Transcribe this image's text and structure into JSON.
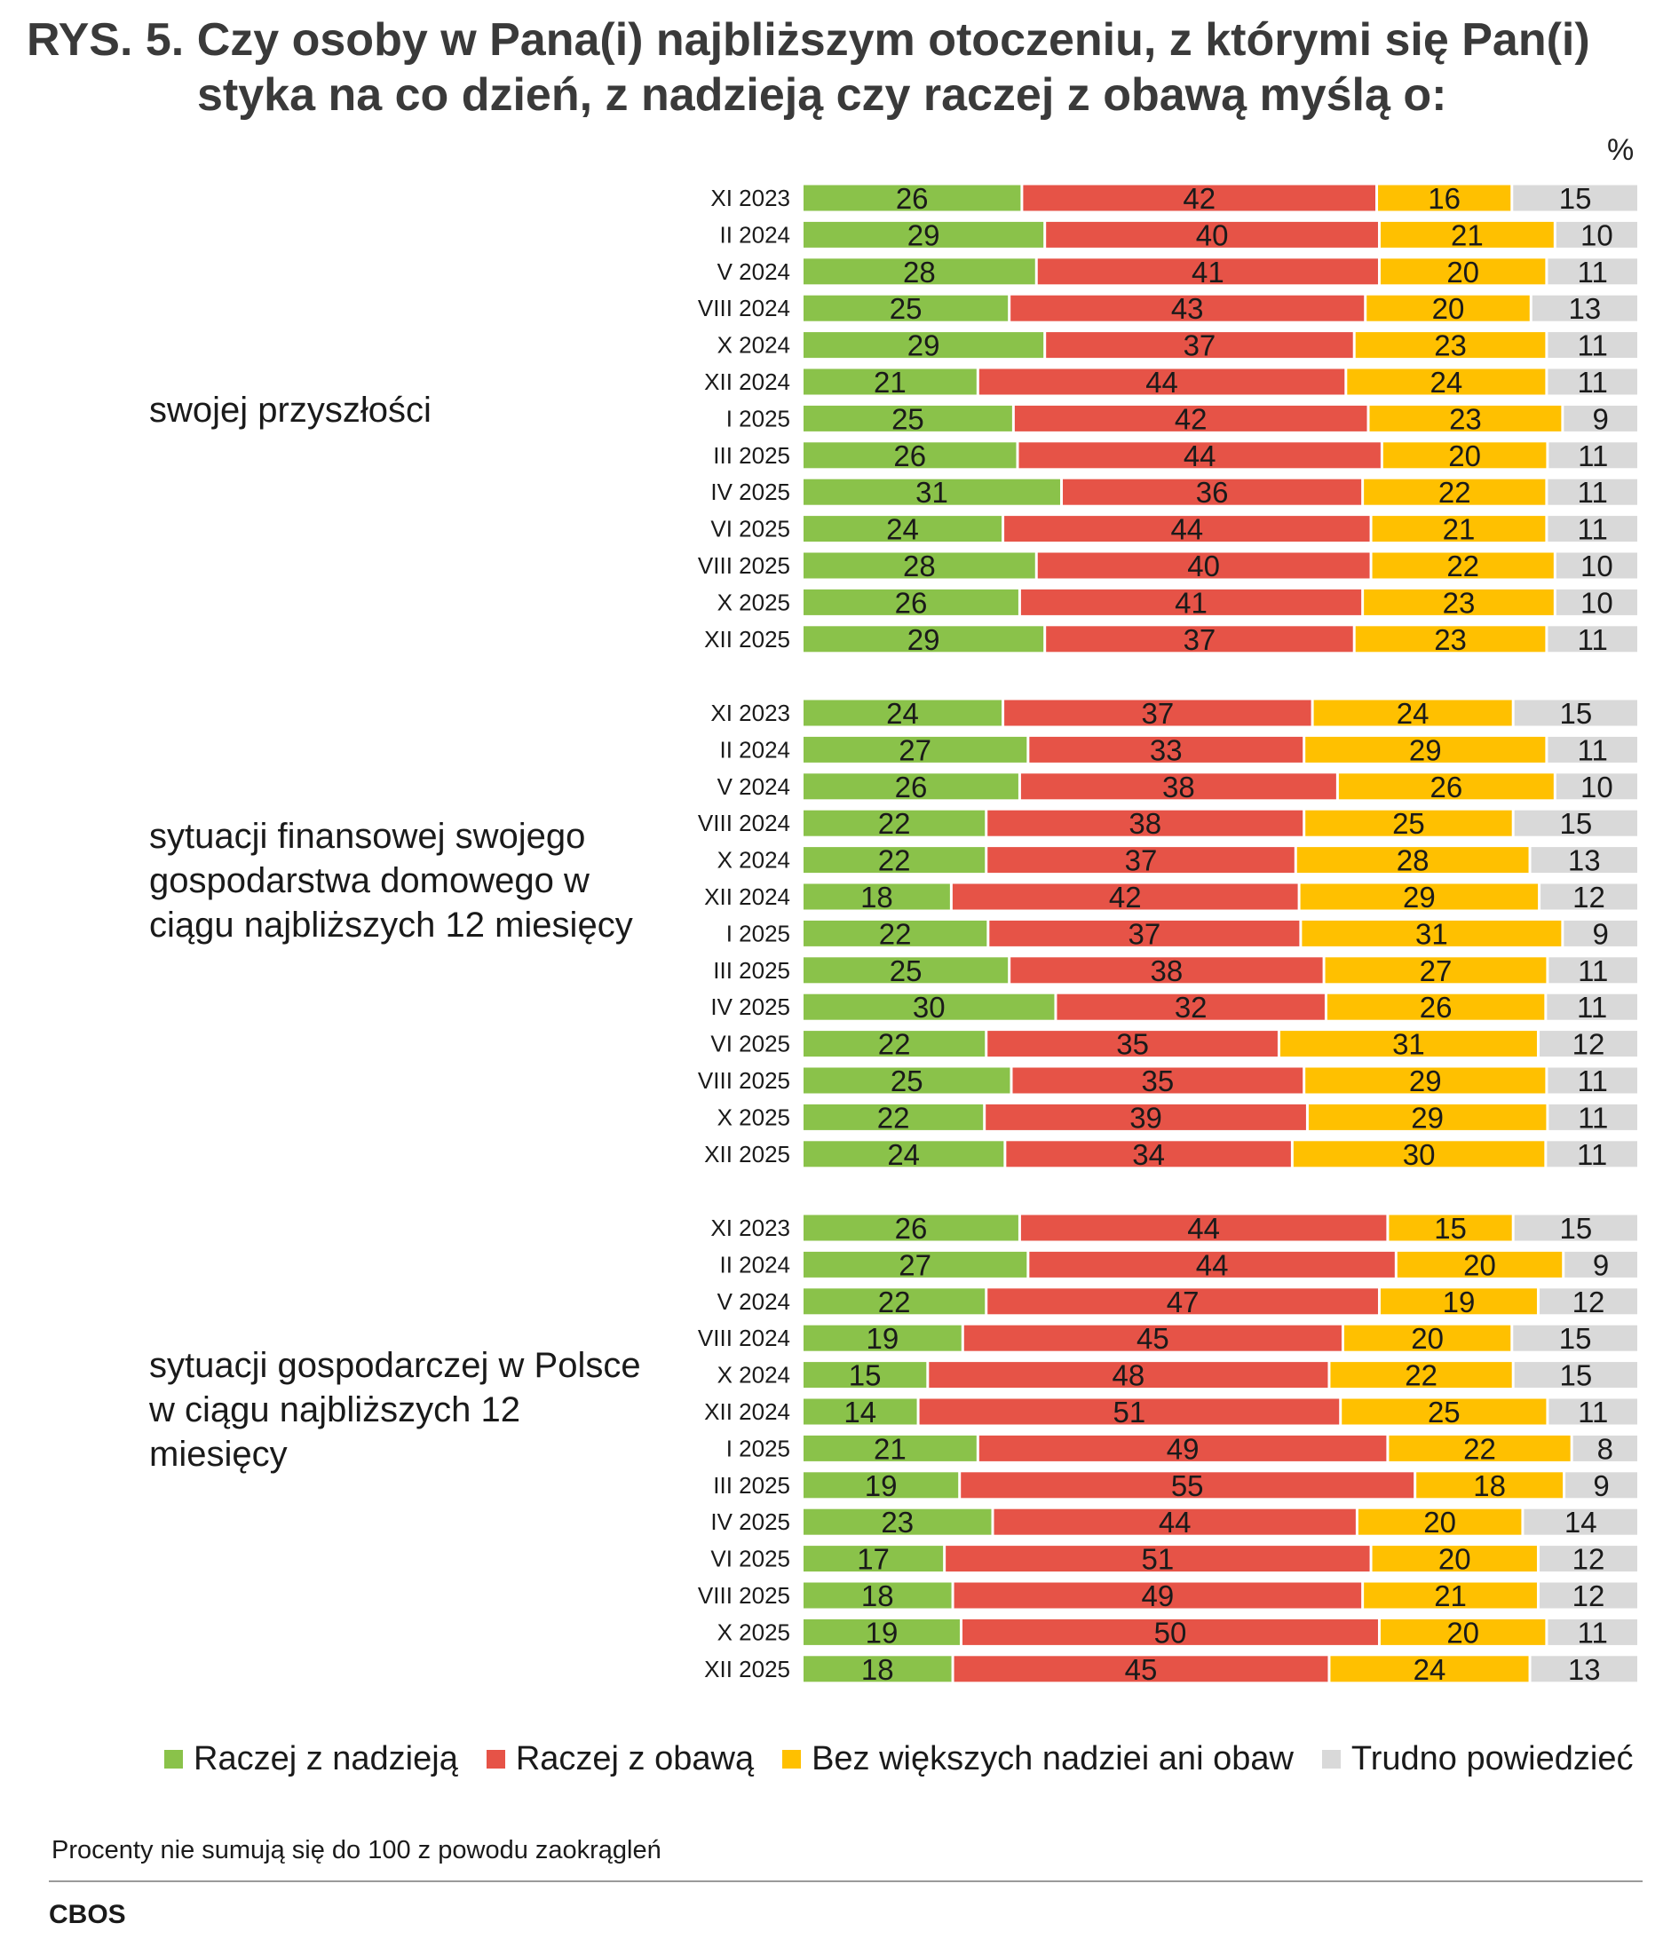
{
  "title": {
    "line1": "RYS. 5. Czy osoby w Pana(i) najbliższym otoczeniu, z którymi się Pan(i)",
    "line2": "styka na co dzień, z nadzieją czy raczej z obawą myślą o:"
  },
  "unit": "%",
  "legend": [
    {
      "label": "Raczej z nadzieją",
      "color": "#8ac24a"
    },
    {
      "label": "Raczej z obawą",
      "color": "#e65347"
    },
    {
      "label": "Bez większych nadziei ani obaw",
      "color": "#ffc000"
    },
    {
      "label": "Trudno powiedzieć",
      "color": "#d9d9d9"
    }
  ],
  "note": "Procenty nie sumują się do 100 z powodu zaokrągleń",
  "source": "CBOS",
  "chart_data": {
    "type": "bar",
    "orientation": "horizontal",
    "stacked": true,
    "series_names": [
      "Raczej z nadzieją",
      "Raczej z obawą",
      "Bez większych nadziei ani obaw",
      "Trudno powiedzieć"
    ],
    "colors": [
      "#8ac24a",
      "#e65347",
      "#ffc000",
      "#d9d9d9"
    ],
    "periods": [
      "XI 2023",
      "II 2024",
      "V 2024",
      "VIII 2024",
      "X 2024",
      "XII 2024",
      "I 2025",
      "III 2025",
      "IV 2025",
      "VI 2025",
      "VIII 2025",
      "X 2025",
      "XII 2025"
    ],
    "groups": [
      {
        "label": "swojej przyszłości",
        "values": [
          [
            26,
            42,
            16,
            15
          ],
          [
            29,
            40,
            21,
            10
          ],
          [
            28,
            41,
            20,
            11
          ],
          [
            25,
            43,
            20,
            13
          ],
          [
            29,
            37,
            23,
            11
          ],
          [
            21,
            44,
            24,
            11
          ],
          [
            25,
            42,
            23,
            9
          ],
          [
            26,
            44,
            20,
            11
          ],
          [
            31,
            36,
            22,
            11
          ],
          [
            24,
            44,
            21,
            11
          ],
          [
            28,
            40,
            22,
            10
          ],
          [
            26,
            41,
            23,
            10
          ],
          [
            29,
            37,
            23,
            11
          ]
        ]
      },
      {
        "label": "sytuacji finansowej swojego gospodarstwa domowego w ciągu najbliższych 12 miesięcy",
        "values": [
          [
            24,
            37,
            24,
            15
          ],
          [
            27,
            33,
            29,
            11
          ],
          [
            26,
            38,
            26,
            10
          ],
          [
            22,
            38,
            25,
            15
          ],
          [
            22,
            37,
            28,
            13
          ],
          [
            18,
            42,
            29,
            12
          ],
          [
            22,
            37,
            31,
            9
          ],
          [
            25,
            38,
            27,
            11
          ],
          [
            30,
            32,
            26,
            11
          ],
          [
            22,
            35,
            31,
            12
          ],
          [
            25,
            35,
            29,
            11
          ],
          [
            22,
            39,
            29,
            11
          ],
          [
            24,
            34,
            30,
            11
          ]
        ]
      },
      {
        "label": "sytuacji gospodarczej w Polsce w ciągu najbliższych 12 miesięcy",
        "values": [
          [
            26,
            44,
            15,
            15
          ],
          [
            27,
            44,
            20,
            9
          ],
          [
            22,
            47,
            19,
            12
          ],
          [
            19,
            45,
            20,
            15
          ],
          [
            15,
            48,
            22,
            15
          ],
          [
            14,
            51,
            25,
            11
          ],
          [
            21,
            49,
            22,
            8
          ],
          [
            19,
            55,
            18,
            9
          ],
          [
            23,
            44,
            20,
            14
          ],
          [
            17,
            51,
            20,
            12
          ],
          [
            18,
            49,
            21,
            12
          ],
          [
            19,
            50,
            20,
            11
          ],
          [
            18,
            45,
            24,
            13
          ]
        ]
      }
    ]
  }
}
